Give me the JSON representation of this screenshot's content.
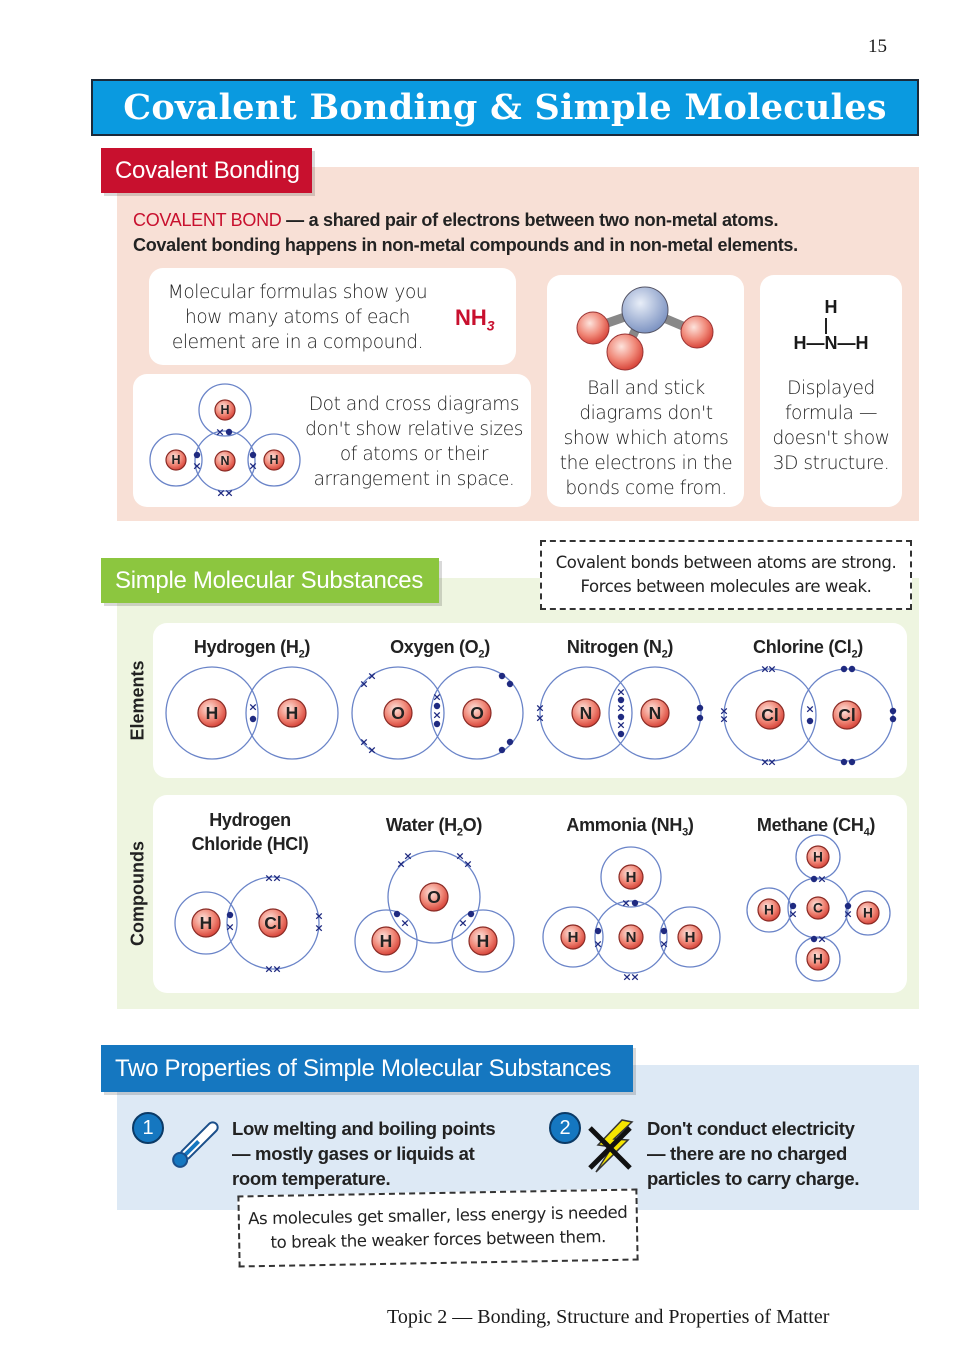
{
  "page_number": "15",
  "title": "Covalent Bonding & Simple Molecules",
  "colors": {
    "title_blue": "#0a9ae0",
    "red_tab": "#c8102e",
    "pink_bg": "#f8e0d6",
    "green_tab": "#8cc63f",
    "green_bg": "#eef5e0",
    "blue_tab": "#1577c0",
    "blue_bg": "#dde9f5",
    "electron": "#1f2a80",
    "shell": "#6a84c8"
  },
  "covalent": {
    "tab": "Covalent Bonding",
    "term": "COVALENT BOND",
    "definition": " — a shared pair of electrons between two non-metal atoms.",
    "line2": "Covalent bonding happens in non-metal compounds and in non-metal elements.",
    "molecular_formula_text": "Molecular formulas show you how many atoms of each element are in a compound.",
    "formula_main": "NH",
    "formula_sub": "3",
    "dot_cross_text": "Dot and cross diagrams don't show relative sizes of atoms or their arrangement in space.",
    "dot_cross_atoms": [
      "N",
      "H",
      "H",
      "H"
    ],
    "ball_stick_text": "Ball and stick diagrams don't show which atoms the electrons in the bonds come from.",
    "displayed": {
      "top": "H",
      "row": "H—N—H",
      "text": "Displayed formula — doesn't show 3D structure."
    }
  },
  "simple": {
    "tab": "Simple Molecular Substances",
    "note": [
      "Covalent bonds between atoms are strong.",
      "Forces between molecules are weak."
    ],
    "elements_label": "Elements",
    "compounds_label": "Compounds",
    "elements": [
      {
        "pre": "Hydrogen (H",
        "sub": "2",
        "post": ")",
        "atoms": [
          "H",
          "H"
        ]
      },
      {
        "pre": "Oxygen (O",
        "sub": "2",
        "post": ")",
        "atoms": [
          "O",
          "O"
        ]
      },
      {
        "pre": "Nitrogen (N",
        "sub": "2",
        "post": ")",
        "atoms": [
          "N",
          "N"
        ]
      },
      {
        "pre": "Chlorine (Cl",
        "sub": "2",
        "post": ")",
        "atoms": [
          "Cl",
          "Cl"
        ]
      }
    ],
    "compounds": [
      {
        "pre": "Hydrogen Chloride (HCl)",
        "sub": "",
        "post": "",
        "atoms": [
          "H",
          "Cl"
        ]
      },
      {
        "pre": "Water (H",
        "sub": "2",
        "post": "O)",
        "atoms": [
          "O",
          "H",
          "H"
        ]
      },
      {
        "pre": "Ammonia (NH",
        "sub": "3",
        "post": ")",
        "atoms": [
          "N",
          "H",
          "H",
          "H"
        ]
      },
      {
        "pre": "Methane (CH",
        "sub": "4",
        "post": ")",
        "atoms": [
          "C",
          "H",
          "H",
          "H",
          "H"
        ]
      }
    ]
  },
  "properties": {
    "tab": "Two Properties of Simple Molecular Substances",
    "items": [
      {
        "num": "1",
        "icon": "thermometer-icon",
        "lines": [
          "Low melting and boiling points",
          "— mostly gases or liquids at",
          "room temperature."
        ]
      },
      {
        "num": "2",
        "icon": "no-electricity-icon",
        "lines": [
          "Don't conduct electricity",
          "— there are no charged",
          "particles to carry charge."
        ]
      }
    ],
    "note": [
      "As molecules get smaller, less energy is needed",
      "to break the weaker forces between them."
    ]
  },
  "footer": "Topic 2 — Bonding, Structure and Properties of Matter"
}
